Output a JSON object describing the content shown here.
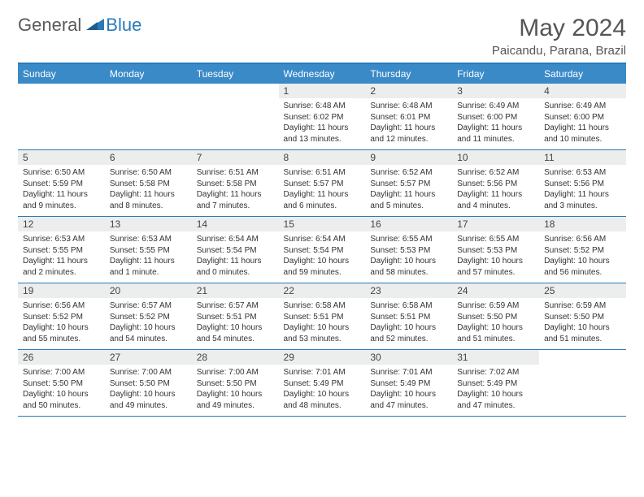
{
  "logo": {
    "part1": "General",
    "part2": "Blue"
  },
  "title": "May 2024",
  "location": "Paicandu, Parana, Brazil",
  "day_names": [
    "Sunday",
    "Monday",
    "Tuesday",
    "Wednesday",
    "Thursday",
    "Friday",
    "Saturday"
  ],
  "header_bg": "#3a8ac8",
  "border_color": "#2a7ab8",
  "daynum_bg": "#eceded",
  "weeks": [
    {
      "nums": [
        "",
        "",
        "",
        "1",
        "2",
        "3",
        "4"
      ],
      "details": [
        "",
        "",
        "",
        "Sunrise: 6:48 AM\nSunset: 6:02 PM\nDaylight: 11 hours and 13 minutes.",
        "Sunrise: 6:48 AM\nSunset: 6:01 PM\nDaylight: 11 hours and 12 minutes.",
        "Sunrise: 6:49 AM\nSunset: 6:00 PM\nDaylight: 11 hours and 11 minutes.",
        "Sunrise: 6:49 AM\nSunset: 6:00 PM\nDaylight: 11 hours and 10 minutes."
      ]
    },
    {
      "nums": [
        "5",
        "6",
        "7",
        "8",
        "9",
        "10",
        "11"
      ],
      "details": [
        "Sunrise: 6:50 AM\nSunset: 5:59 PM\nDaylight: 11 hours and 9 minutes.",
        "Sunrise: 6:50 AM\nSunset: 5:58 PM\nDaylight: 11 hours and 8 minutes.",
        "Sunrise: 6:51 AM\nSunset: 5:58 PM\nDaylight: 11 hours and 7 minutes.",
        "Sunrise: 6:51 AM\nSunset: 5:57 PM\nDaylight: 11 hours and 6 minutes.",
        "Sunrise: 6:52 AM\nSunset: 5:57 PM\nDaylight: 11 hours and 5 minutes.",
        "Sunrise: 6:52 AM\nSunset: 5:56 PM\nDaylight: 11 hours and 4 minutes.",
        "Sunrise: 6:53 AM\nSunset: 5:56 PM\nDaylight: 11 hours and 3 minutes."
      ]
    },
    {
      "nums": [
        "12",
        "13",
        "14",
        "15",
        "16",
        "17",
        "18"
      ],
      "details": [
        "Sunrise: 6:53 AM\nSunset: 5:55 PM\nDaylight: 11 hours and 2 minutes.",
        "Sunrise: 6:53 AM\nSunset: 5:55 PM\nDaylight: 11 hours and 1 minute.",
        "Sunrise: 6:54 AM\nSunset: 5:54 PM\nDaylight: 11 hours and 0 minutes.",
        "Sunrise: 6:54 AM\nSunset: 5:54 PM\nDaylight: 10 hours and 59 minutes.",
        "Sunrise: 6:55 AM\nSunset: 5:53 PM\nDaylight: 10 hours and 58 minutes.",
        "Sunrise: 6:55 AM\nSunset: 5:53 PM\nDaylight: 10 hours and 57 minutes.",
        "Sunrise: 6:56 AM\nSunset: 5:52 PM\nDaylight: 10 hours and 56 minutes."
      ]
    },
    {
      "nums": [
        "19",
        "20",
        "21",
        "22",
        "23",
        "24",
        "25"
      ],
      "details": [
        "Sunrise: 6:56 AM\nSunset: 5:52 PM\nDaylight: 10 hours and 55 minutes.",
        "Sunrise: 6:57 AM\nSunset: 5:52 PM\nDaylight: 10 hours and 54 minutes.",
        "Sunrise: 6:57 AM\nSunset: 5:51 PM\nDaylight: 10 hours and 54 minutes.",
        "Sunrise: 6:58 AM\nSunset: 5:51 PM\nDaylight: 10 hours and 53 minutes.",
        "Sunrise: 6:58 AM\nSunset: 5:51 PM\nDaylight: 10 hours and 52 minutes.",
        "Sunrise: 6:59 AM\nSunset: 5:50 PM\nDaylight: 10 hours and 51 minutes.",
        "Sunrise: 6:59 AM\nSunset: 5:50 PM\nDaylight: 10 hours and 51 minutes."
      ]
    },
    {
      "nums": [
        "26",
        "27",
        "28",
        "29",
        "30",
        "31",
        ""
      ],
      "details": [
        "Sunrise: 7:00 AM\nSunset: 5:50 PM\nDaylight: 10 hours and 50 minutes.",
        "Sunrise: 7:00 AM\nSunset: 5:50 PM\nDaylight: 10 hours and 49 minutes.",
        "Sunrise: 7:00 AM\nSunset: 5:50 PM\nDaylight: 10 hours and 49 minutes.",
        "Sunrise: 7:01 AM\nSunset: 5:49 PM\nDaylight: 10 hours and 48 minutes.",
        "Sunrise: 7:01 AM\nSunset: 5:49 PM\nDaylight: 10 hours and 47 minutes.",
        "Sunrise: 7:02 AM\nSunset: 5:49 PM\nDaylight: 10 hours and 47 minutes.",
        ""
      ]
    }
  ]
}
